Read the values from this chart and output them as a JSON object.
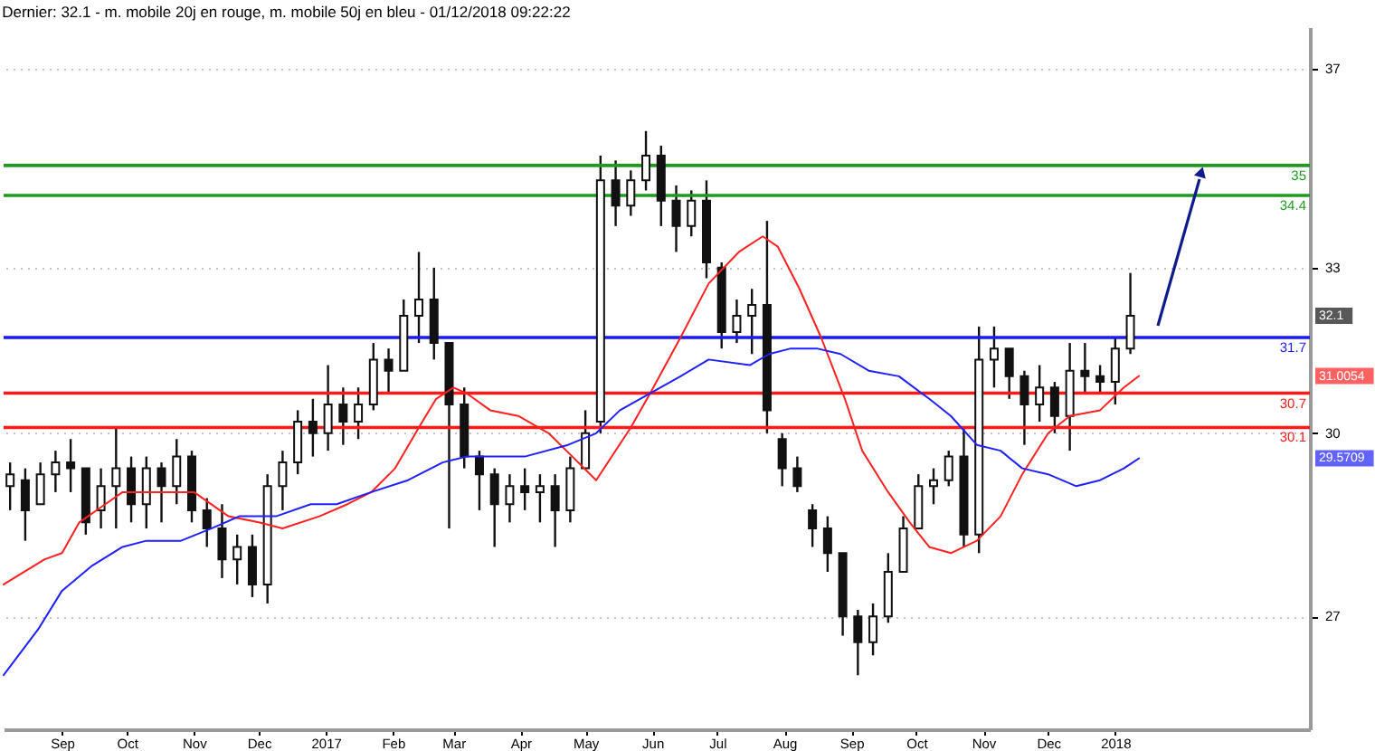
{
  "chart_data": {
    "type": "candlestick",
    "title": "Dernier: 32.1 - m. mobile 20j en rouge, m. mobile 50j en bleu - 01/12/2018 09:22:22",
    "color": "#111111",
    "x": [
      "2016-08-08",
      "2016-08-15",
      "2016-08-22",
      "2016-08-29",
      "2016-09-05",
      "2016-09-12",
      "2016-09-19",
      "2016-09-26",
      "2016-10-03",
      "2016-10-10",
      "2016-10-17",
      "2016-10-24",
      "2016-10-31",
      "2016-11-07",
      "2016-11-14",
      "2016-11-21",
      "2016-11-28",
      "2016-12-05",
      "2016-12-12",
      "2016-12-19",
      "2016-12-26",
      "2017-01-02",
      "2017-01-09",
      "2017-01-16",
      "2017-01-23",
      "2017-01-30",
      "2017-02-06",
      "2017-02-13",
      "2017-02-20",
      "2017-02-27",
      "2017-03-06",
      "2017-03-13",
      "2017-03-20",
      "2017-03-27",
      "2017-04-03",
      "2017-04-10",
      "2017-04-17",
      "2017-04-24",
      "2017-05-01",
      "2017-05-08",
      "2017-05-15",
      "2017-05-22",
      "2017-05-29",
      "2017-06-05",
      "2017-06-12",
      "2017-06-19",
      "2017-06-26",
      "2017-07-03",
      "2017-07-10",
      "2017-07-17",
      "2017-07-24",
      "2017-07-31",
      "2017-08-07",
      "2017-08-14",
      "2017-08-21",
      "2017-08-28",
      "2017-09-04",
      "2017-09-11",
      "2017-09-18",
      "2017-09-25",
      "2017-10-02",
      "2017-10-09",
      "2017-10-16",
      "2017-10-23",
      "2017-10-30",
      "2017-11-06",
      "2017-11-13",
      "2017-11-20",
      "2017-11-27",
      "2017-12-04",
      "2017-12-11",
      "2017-12-18",
      "2017-12-25",
      "2018-01-01",
      "2018-01-08"
    ],
    "ohlc": [
      [
        29.1,
        29.5,
        28.7,
        29.3
      ],
      [
        29.2,
        29.4,
        28.2,
        28.7
      ],
      [
        28.8,
        29.5,
        28.8,
        29.3
      ],
      [
        29.3,
        29.7,
        29.0,
        29.5
      ],
      [
        29.5,
        29.9,
        29.0,
        29.4
      ],
      [
        29.4,
        29.4,
        28.3,
        28.5
      ],
      [
        28.7,
        29.4,
        28.4,
        29.1
      ],
      [
        29.1,
        30.1,
        28.4,
        29.4
      ],
      [
        29.4,
        29.6,
        28.5,
        28.8
      ],
      [
        28.8,
        29.6,
        28.4,
        29.4
      ],
      [
        29.4,
        29.5,
        28.5,
        29.1
      ],
      [
        29.1,
        29.9,
        28.8,
        29.6
      ],
      [
        29.6,
        29.7,
        28.5,
        28.7
      ],
      [
        28.7,
        28.9,
        28.1,
        28.4
      ],
      [
        28.4,
        28.8,
        27.6,
        27.9
      ],
      [
        27.9,
        28.3,
        27.5,
        28.1
      ],
      [
        28.1,
        28.3,
        27.3,
        27.5
      ],
      [
        27.5,
        29.3,
        27.2,
        29.1
      ],
      [
        29.1,
        29.7,
        28.7,
        29.5
      ],
      [
        29.5,
        30.4,
        29.3,
        30.2
      ],
      [
        30.2,
        30.6,
        29.6,
        30.0
      ],
      [
        30.0,
        31.2,
        29.7,
        30.5
      ],
      [
        30.5,
        30.8,
        29.8,
        30.2
      ],
      [
        30.2,
        30.8,
        29.9,
        30.5
      ],
      [
        30.5,
        31.6,
        30.4,
        31.3
      ],
      [
        31.3,
        31.5,
        30.7,
        31.1
      ],
      [
        31.1,
        32.4,
        31.1,
        32.1
      ],
      [
        32.1,
        33.3,
        31.6,
        32.4
      ],
      [
        32.4,
        33.0,
        31.3,
        31.6
      ],
      [
        31.6,
        31.6,
        28.4,
        30.5
      ],
      [
        30.5,
        30.8,
        29.4,
        29.6
      ],
      [
        29.6,
        29.7,
        28.7,
        29.3
      ],
      [
        29.3,
        29.4,
        28.1,
        28.8
      ],
      [
        28.8,
        29.3,
        28.5,
        29.1
      ],
      [
        29.1,
        29.4,
        28.7,
        29.0
      ],
      [
        29.0,
        29.3,
        28.5,
        29.1
      ],
      [
        29.1,
        29.3,
        28.1,
        28.7
      ],
      [
        28.7,
        29.6,
        28.5,
        29.4
      ],
      [
        29.4,
        30.4,
        29.4,
        30.0
      ],
      [
        30.2,
        35.2,
        30.0,
        34.7
      ],
      [
        34.7,
        35.1,
        33.8,
        34.2
      ],
      [
        34.2,
        34.9,
        34.0,
        34.7
      ],
      [
        34.7,
        35.7,
        34.5,
        35.2
      ],
      [
        35.2,
        35.4,
        33.8,
        34.3
      ],
      [
        34.3,
        34.6,
        33.3,
        33.8
      ],
      [
        33.8,
        34.5,
        33.6,
        34.3
      ],
      [
        34.3,
        34.7,
        32.8,
        33.1
      ],
      [
        33.0,
        33.1,
        31.5,
        31.8
      ],
      [
        31.8,
        32.4,
        31.6,
        32.1
      ],
      [
        32.1,
        32.6,
        31.4,
        32.3
      ],
      [
        32.3,
        33.9,
        30.0,
        30.4
      ],
      [
        29.9,
        30.0,
        29.1,
        29.4
      ],
      [
        29.4,
        29.6,
        29.0,
        29.1
      ],
      [
        28.7,
        28.8,
        28.1,
        28.4
      ],
      [
        28.4,
        28.6,
        27.7,
        28.0
      ],
      [
        28.0,
        28.0,
        26.7,
        27.0
      ],
      [
        27.0,
        27.1,
        26.1,
        26.6
      ],
      [
        26.6,
        27.2,
        26.4,
        27.0
      ],
      [
        27.0,
        28.0,
        26.9,
        27.7
      ],
      [
        27.7,
        28.6,
        27.7,
        28.4
      ],
      [
        28.4,
        29.3,
        28.4,
        29.1
      ],
      [
        29.1,
        29.4,
        28.8,
        29.2
      ],
      [
        29.2,
        29.7,
        29.1,
        29.6
      ],
      [
        29.6,
        30.1,
        28.1,
        28.3
      ],
      [
        28.3,
        31.9,
        28.0,
        31.3
      ],
      [
        31.3,
        31.9,
        30.8,
        31.5
      ],
      [
        31.5,
        31.5,
        30.6,
        31.0
      ],
      [
        31.0,
        31.1,
        29.8,
        30.5
      ],
      [
        30.5,
        31.2,
        30.2,
        30.8
      ],
      [
        30.8,
        30.9,
        30.0,
        30.3
      ],
      [
        30.3,
        31.6,
        29.7,
        31.1
      ],
      [
        31.1,
        31.6,
        30.7,
        31.0
      ],
      [
        31.0,
        31.2,
        30.7,
        30.9
      ],
      [
        30.9,
        31.7,
        30.5,
        31.5
      ],
      [
        31.5,
        32.9,
        31.4,
        32.1
      ]
    ],
    "series": [
      {
        "type": "line",
        "color": "#ff2020",
        "x": [
          "2016-08-05",
          "2016-08-24",
          "2016-09-01",
          "2016-09-09",
          "2016-09-21",
          "2016-09-29",
          "2016-10-10",
          "2016-10-24",
          "2016-11-01",
          "2016-11-17",
          "2016-12-01",
          "2016-12-12",
          "2016-12-29",
          "2017-01-11",
          "2017-01-22",
          "2017-02-02",
          "2017-02-13",
          "2017-02-21",
          "2017-03-01",
          "2017-03-07",
          "2017-03-18",
          "2017-03-31",
          "2017-04-14",
          "2017-04-25",
          "2017-05-06",
          "2017-05-22",
          "2017-05-31",
          "2017-06-14",
          "2017-06-27",
          "2017-07-11",
          "2017-07-22",
          "2017-07-29",
          "2017-08-08",
          "2017-08-18",
          "2017-08-29",
          "2017-09-06",
          "2017-09-18",
          "2017-09-28",
          "2017-10-07",
          "2017-10-17",
          "2017-10-29",
          "2017-11-09",
          "2017-11-19",
          "2017-12-01",
          "2017-12-11",
          "2017-12-25",
          "2018-01-05",
          "2018-01-12"
        ],
        "values": [
          27.5,
          27.9,
          28.0,
          28.5,
          28.8,
          29.0,
          29.0,
          29.0,
          29.0,
          28.6,
          28.5,
          28.4,
          28.6,
          28.8,
          29.0,
          29.4,
          30.1,
          30.6,
          30.8,
          30.7,
          30.4,
          30.3,
          30.0,
          29.6,
          29.2,
          30.1,
          30.7,
          31.7,
          32.7,
          33.3,
          33.6,
          33.4,
          32.6,
          31.7,
          30.6,
          29.7,
          29.0,
          28.5,
          28.1,
          28.0,
          28.2,
          28.6,
          29.3,
          30.0,
          30.3,
          30.4,
          30.8,
          31.0054
        ]
      },
      {
        "type": "line",
        "color": "#2020ff",
        "x": [
          "2016-08-05",
          "2016-08-21",
          "2016-09-01",
          "2016-09-15",
          "2016-09-29",
          "2016-10-10",
          "2016-10-26",
          "2016-11-09",
          "2016-11-22",
          "2016-12-09",
          "2016-12-25",
          "2017-01-06",
          "2017-01-22",
          "2017-02-08",
          "2017-02-24",
          "2017-03-07",
          "2017-03-23",
          "2017-04-03",
          "2017-04-23",
          "2017-05-06",
          "2017-05-17",
          "2017-05-31",
          "2017-06-14",
          "2017-06-27",
          "2017-07-16",
          "2017-07-25",
          "2017-08-04",
          "2017-08-16",
          "2017-08-27",
          "2017-09-09",
          "2017-09-23",
          "2017-10-07",
          "2017-10-17",
          "2017-10-29",
          "2017-11-09",
          "2017-11-19",
          "2017-12-01",
          "2017-12-14",
          "2017-12-25",
          "2018-01-05",
          "2018-01-12"
        ],
        "values": [
          26.1,
          26.8,
          27.4,
          27.8,
          28.1,
          28.2,
          28.2,
          28.4,
          28.6,
          28.6,
          28.8,
          28.8,
          29.0,
          29.2,
          29.5,
          29.6,
          29.6,
          29.6,
          29.8,
          30.0,
          30.4,
          30.7,
          31.0,
          31.3,
          31.2,
          31.4,
          31.5,
          31.5,
          31.4,
          31.1,
          31.0,
          30.6,
          30.3,
          29.8,
          29.7,
          29.4,
          29.3,
          29.1,
          29.2,
          29.4,
          29.5709
        ]
      }
    ],
    "xlim": [
      "2016-08-05",
      "2018-04-01"
    ],
    "xticks": [
      {
        "value": "2016-09-01",
        "label": "Sep"
      },
      {
        "value": "2016-10-01",
        "label": "Oct"
      },
      {
        "value": "2016-11-01",
        "label": "Nov"
      },
      {
        "value": "2016-12-01",
        "label": "Dec"
      },
      {
        "value": "2017-01-01",
        "label": "2017"
      },
      {
        "value": "2017-02-01",
        "label": "Feb"
      },
      {
        "value": "2017-03-01",
        "label": "Mar"
      },
      {
        "value": "2017-04-01",
        "label": "Apr"
      },
      {
        "value": "2017-05-01",
        "label": "May"
      },
      {
        "value": "2017-06-01",
        "label": "Jun"
      },
      {
        "value": "2017-07-01",
        "label": "Jul"
      },
      {
        "value": "2017-08-01",
        "label": "Aug"
      },
      {
        "value": "2017-09-01",
        "label": "Sep"
      },
      {
        "value": "2017-10-01",
        "label": "Oct"
      },
      {
        "value": "2017-11-01",
        "label": "Nov"
      },
      {
        "value": "2017-12-01",
        "label": "Dec"
      },
      {
        "value": "2018-01-01",
        "label": "2018"
      }
    ],
    "ylim": [
      25.3,
      37.9
    ],
    "yticks": [
      27,
      30,
      33,
      37
    ],
    "log": true,
    "grid": "y",
    "ref_lines": [
      {
        "axis": "y",
        "value": 35,
        "label": "35",
        "color": "#1f9a1f"
      },
      {
        "axis": "y",
        "value": 34.4,
        "label": "34.4",
        "color": "#1f9a1f"
      },
      {
        "axis": "y",
        "value": 31.7,
        "label": "31.7",
        "color": "#1a1aff"
      },
      {
        "axis": "y",
        "value": 30.7,
        "label": "30.7",
        "color": "#ff1a1a"
      },
      {
        "axis": "y",
        "value": 30.1,
        "label": "30.1",
        "color": "#ff1a1a"
      }
    ],
    "annotations": [
      "32.1",
      "31.0054",
      "29.5709"
    ]
  }
}
